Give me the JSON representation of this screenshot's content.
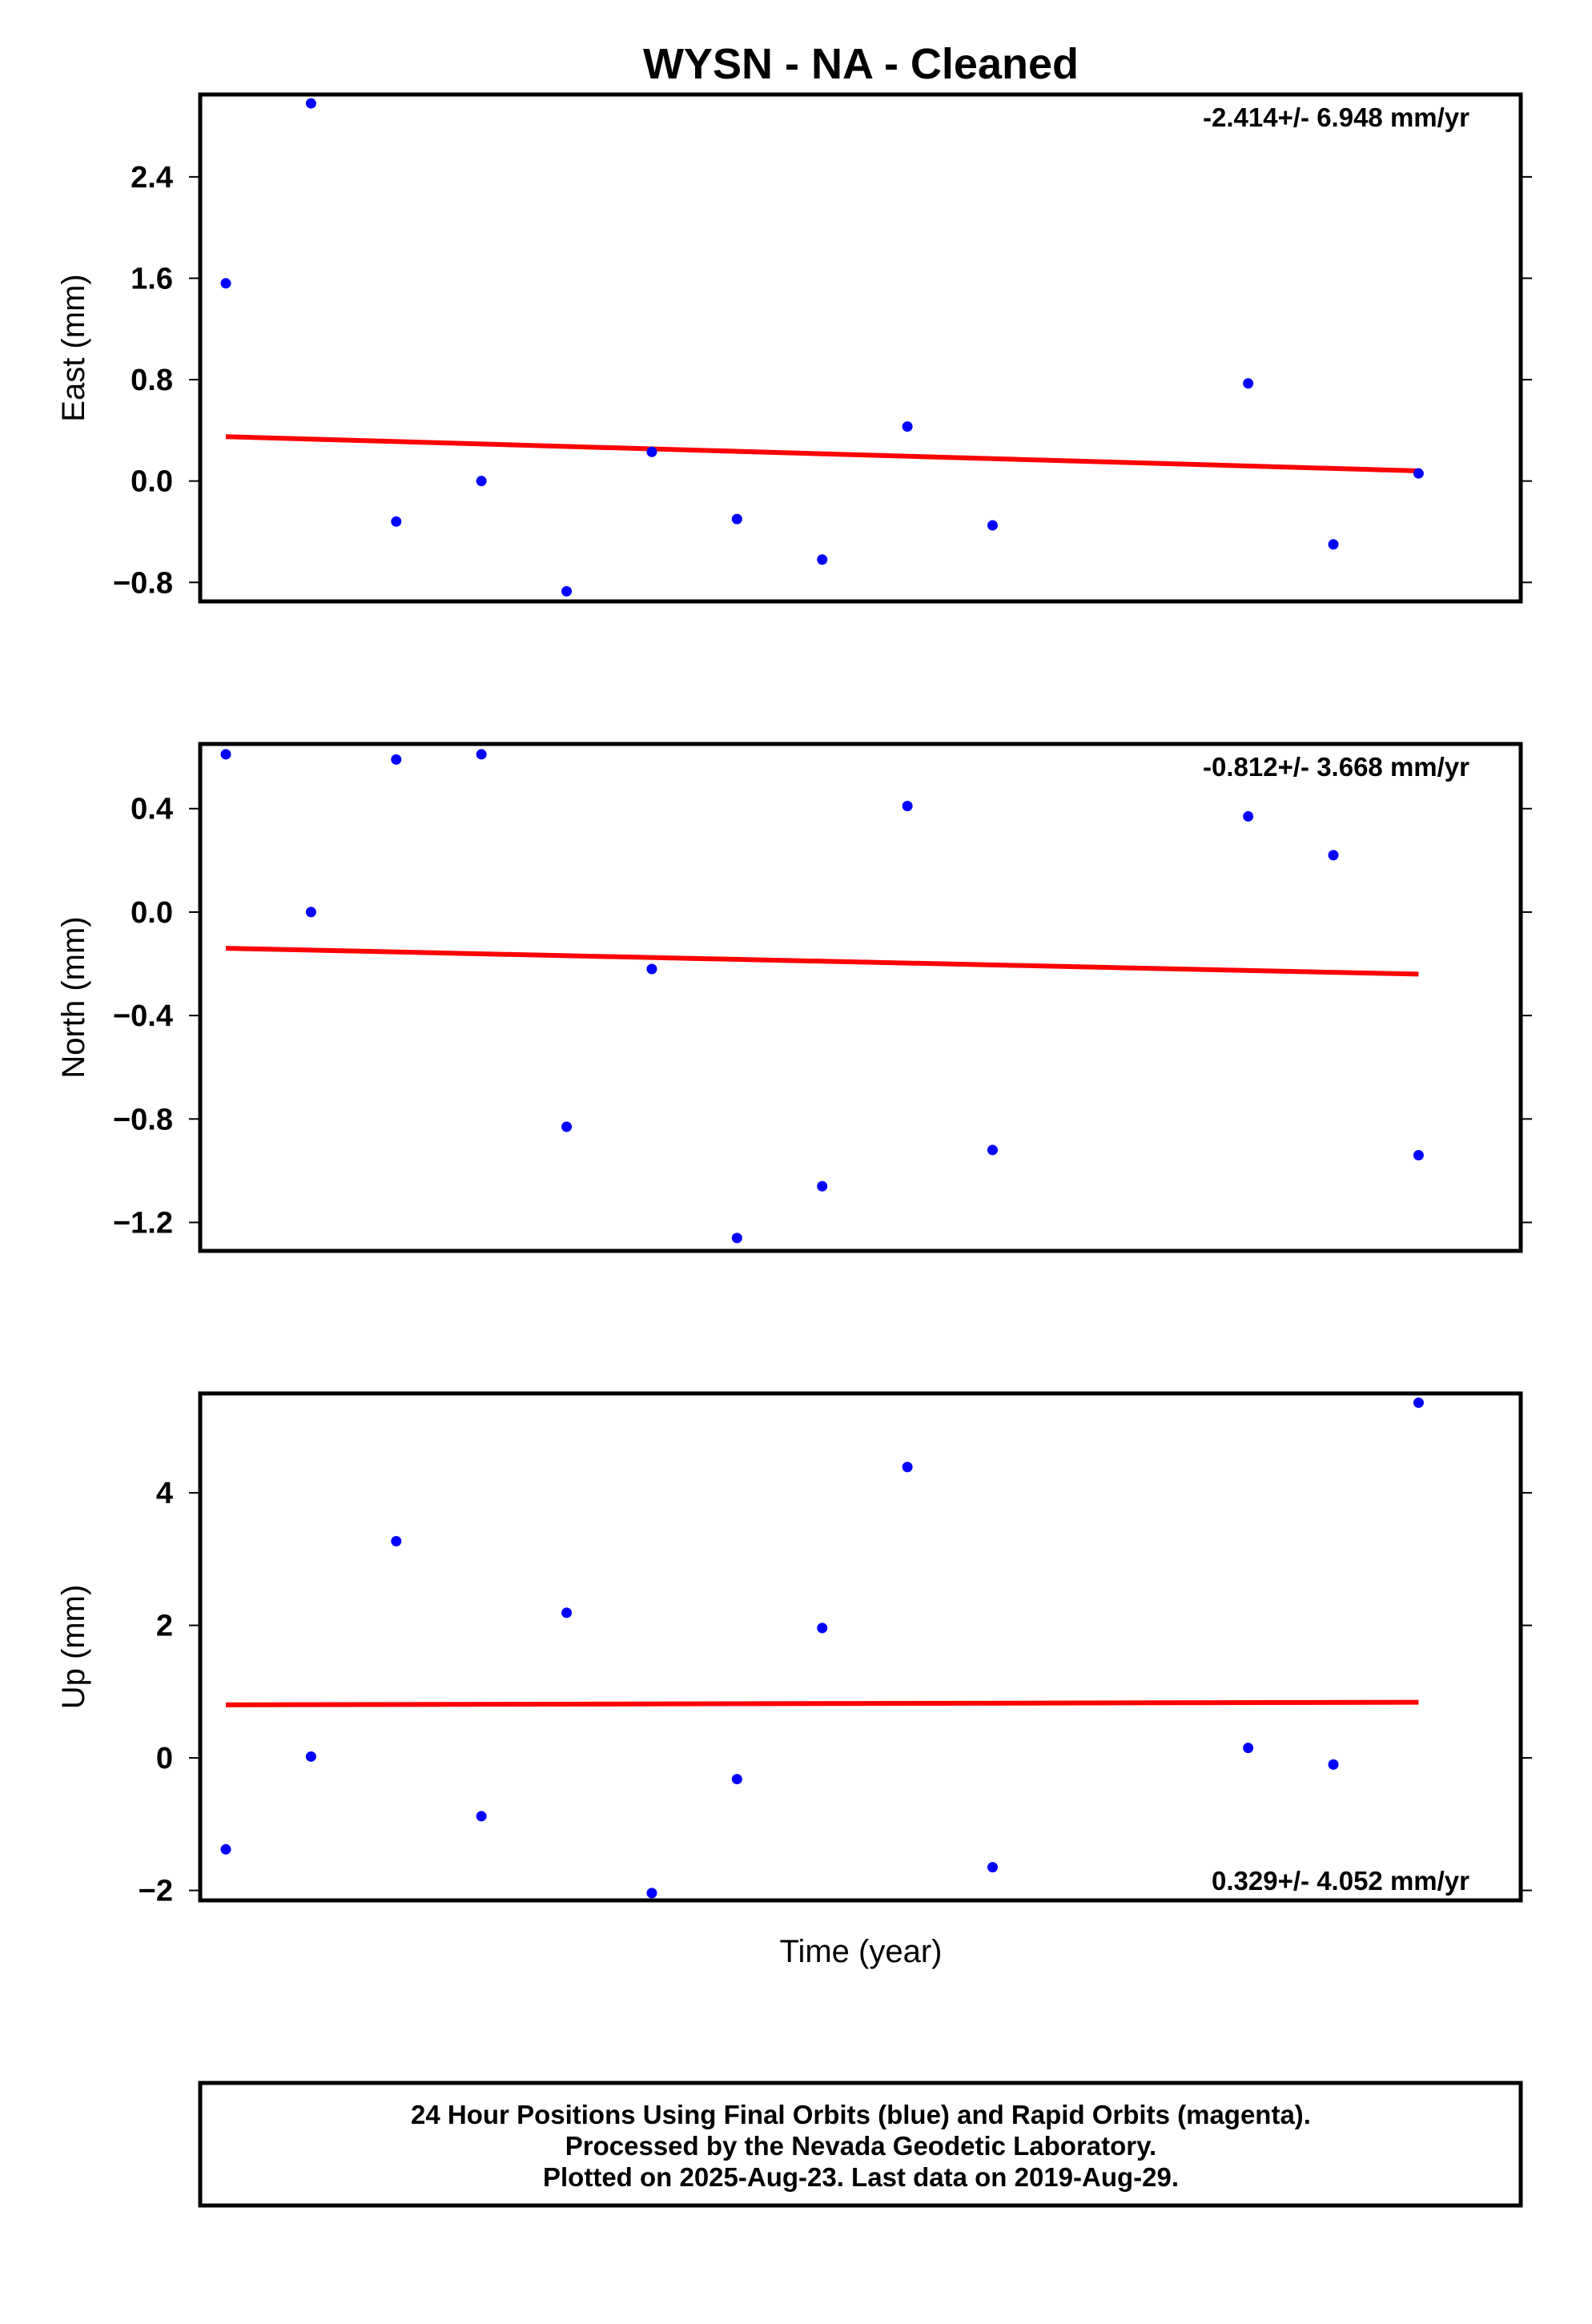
{
  "chart": {
    "title": "WYSN  - NA - Cleaned",
    "xlabel": "Time (year)",
    "colors": {
      "final_orbits": "#0000ff",
      "trend": "#ff0000",
      "frame": "#000000"
    }
  },
  "footer": {
    "line1": "24 Hour Positions Using Final Orbits (blue) and Rapid Orbits (magenta).",
    "line2": "Processed by the Nevada Geodetic Laboratory.",
    "line3": "Plotted on 2025-Aug-23. Last data on 2019-Aug-29."
  },
  "chart_data": [
    {
      "type": "scatter",
      "panel": "east",
      "ylabel": "East (mm)",
      "rate_label": "-2.414+/- 6.948 mm/yr",
      "rate_position": "top-right",
      "ylim": [
        -0.95,
        3.05
      ],
      "yticks": [
        -0.8,
        0.0,
        0.8,
        1.6,
        2.4
      ],
      "ytick_labels": [
        "−0.8",
        "0.0",
        "0.8",
        "1.6",
        "2.4"
      ],
      "xlim": [
        0,
        15.5
      ],
      "x": [
        0,
        1,
        2,
        3,
        4,
        5,
        6,
        7,
        8,
        9,
        10,
        11,
        12,
        13,
        14
      ],
      "y": [
        1.56,
        2.98,
        -0.32,
        0.0,
        -0.87,
        0.23,
        -0.3,
        -0.62,
        0.43,
        -0.35,
        null,
        null,
        0.77,
        -0.5,
        0.06
      ],
      "trend": {
        "y_start": 0.35,
        "y_end": 0.08
      },
      "grid": false
    },
    {
      "type": "scatter",
      "panel": "north",
      "ylabel": "North (mm)",
      "rate_label": "-0.812+/- 3.668 mm/yr",
      "rate_position": "top-right",
      "ylim": [
        -1.31,
        0.65
      ],
      "yticks": [
        -1.2,
        -0.8,
        -0.4,
        0.0,
        0.4
      ],
      "ytick_labels": [
        "−1.2",
        "−0.8",
        "−0.4",
        "0.0",
        "0.4"
      ],
      "xlim": [
        0,
        15.5
      ],
      "x": [
        0,
        1,
        2,
        3,
        4,
        5,
        6,
        7,
        8,
        9,
        10,
        11,
        12,
        13,
        14
      ],
      "y": [
        0.61,
        0.0,
        0.59,
        0.61,
        -0.83,
        -0.22,
        -1.26,
        -1.06,
        0.41,
        -0.92,
        null,
        null,
        0.37,
        0.22,
        -0.94
      ],
      "trend": {
        "y_start": -0.14,
        "y_end": -0.24
      },
      "grid": false
    },
    {
      "type": "scatter",
      "panel": "up",
      "ylabel": "Up (mm)",
      "rate_label": "0.329+/- 4.052 mm/yr",
      "rate_position": "bottom-right",
      "ylim": [
        -2.15,
        5.5
      ],
      "yticks": [
        -2,
        0,
        2,
        4
      ],
      "ytick_labels": [
        "−2",
        "0",
        "2",
        "4"
      ],
      "xlim": [
        0,
        15.5
      ],
      "x": [
        0,
        1,
        2,
        3,
        4,
        5,
        6,
        7,
        8,
        9,
        10,
        11,
        12,
        13,
        14
      ],
      "y": [
        -1.38,
        0.02,
        3.27,
        -0.88,
        2.19,
        -2.04,
        -0.32,
        1.96,
        4.39,
        -1.65,
        null,
        null,
        0.15,
        -0.1,
        5.36
      ],
      "trend": {
        "y_start": 0.8,
        "y_end": 0.84
      },
      "grid": false
    }
  ]
}
